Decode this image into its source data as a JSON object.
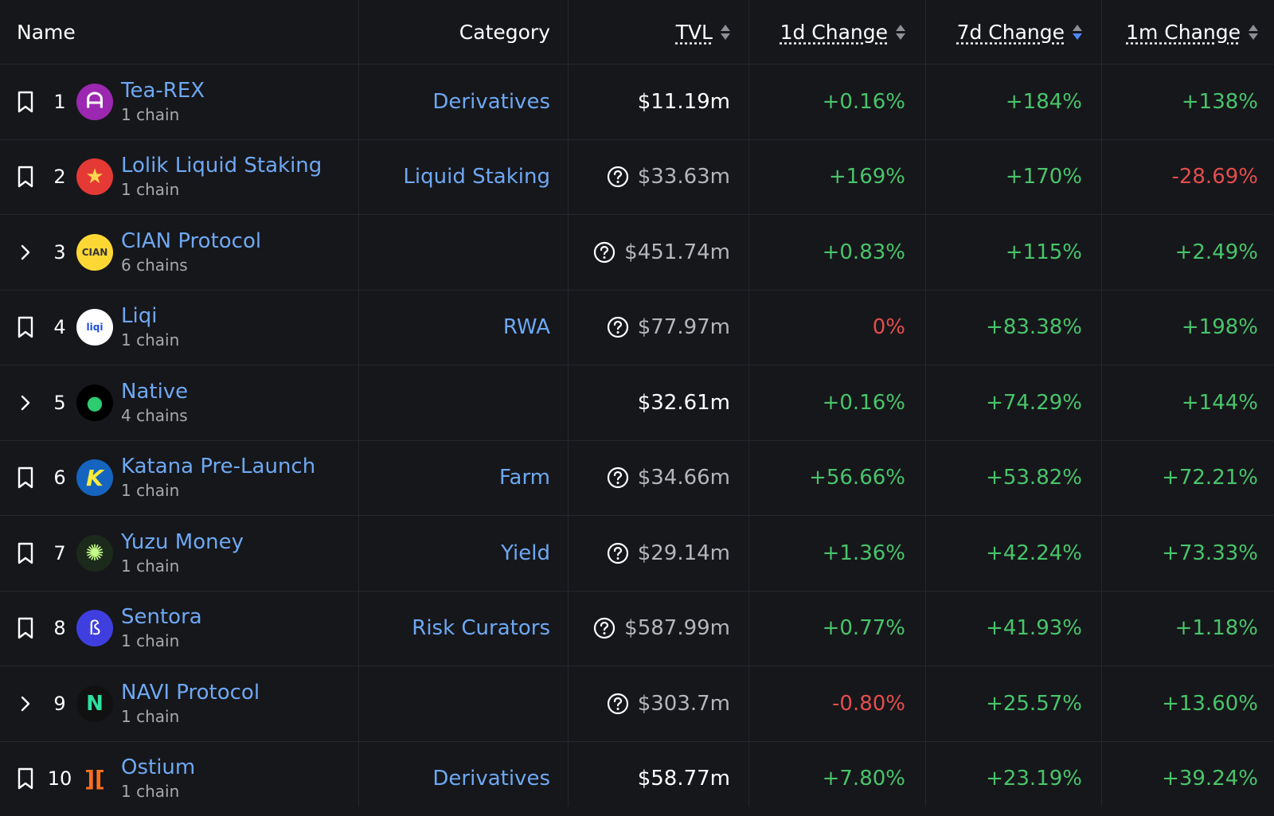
{
  "header": {
    "name": "Name",
    "category": "Category",
    "tvl": "TVL",
    "change_1d": "1d Change",
    "change_7d": "7d Change",
    "change_1m": "1m Change"
  },
  "colors": {
    "background": "#16171b",
    "link": "#6ea8f2",
    "positive": "#48c46a",
    "negative": "#e44d4d",
    "sort_active": "#4d88ff"
  },
  "rows": [
    {
      "rank": "1",
      "name": "Tea-REX",
      "chains": "1 chain",
      "category": "Derivatives",
      "tvl": "$11.19m",
      "d1": "+0.16%",
      "d7": "+184%",
      "m1": "+138%",
      "icon": "bookmark-icon"
    },
    {
      "rank": "2",
      "name": "Lolik Liquid Staking",
      "chains": "1 chain",
      "category": "Liquid Staking",
      "tvl": "$33.63m",
      "d1": "+169%",
      "d7": "+170%",
      "m1": "-28.69%",
      "icon": "bookmark-icon"
    },
    {
      "rank": "3",
      "name": "CIAN Protocol",
      "chains": "6 chains",
      "category": "",
      "tvl": "$451.74m",
      "d1": "+0.83%",
      "d7": "+115%",
      "m1": "+2.49%",
      "icon": "chevron-right-icon"
    },
    {
      "rank": "4",
      "name": "Liqi",
      "chains": "1 chain",
      "category": "RWA",
      "tvl": "$77.97m",
      "d1": "0%",
      "d7": "+83.38%",
      "m1": "+198%",
      "icon": "bookmark-icon"
    },
    {
      "rank": "5",
      "name": "Native",
      "chains": "4 chains",
      "category": "",
      "tvl": "$32.61m",
      "d1": "+0.16%",
      "d7": "+74.29%",
      "m1": "+144%",
      "icon": "chevron-right-icon"
    },
    {
      "rank": "6",
      "name": "Katana Pre-Launch",
      "chains": "1 chain",
      "category": "Farm",
      "tvl": "$34.66m",
      "d1": "+56.66%",
      "d7": "+53.82%",
      "m1": "+72.21%",
      "icon": "bookmark-icon"
    },
    {
      "rank": "7",
      "name": "Yuzu Money",
      "chains": "1 chain",
      "category": "Yield",
      "tvl": "$29.14m",
      "d1": "+1.36%",
      "d7": "+42.24%",
      "m1": "+73.33%",
      "icon": "bookmark-icon"
    },
    {
      "rank": "8",
      "name": "Sentora",
      "chains": "1 chain",
      "category": "Risk Curators",
      "tvl": "$587.99m",
      "d1": "+0.77%",
      "d7": "+41.93%",
      "m1": "+1.18%",
      "icon": "bookmark-icon"
    },
    {
      "rank": "9",
      "name": "NAVI Protocol",
      "chains": "1 chain",
      "category": "",
      "tvl": "$303.7m",
      "d1": "-0.80%",
      "d7": "+25.57%",
      "m1": "+13.60%",
      "icon": "chevron-right-icon"
    },
    {
      "rank": "10",
      "name": "Ostium",
      "chains": "1 chain",
      "category": "Derivatives",
      "tvl": "$58.77m",
      "d1": "+7.80%",
      "d7": "+23.19%",
      "m1": "+39.24%",
      "icon": "bookmark-icon"
    }
  ]
}
